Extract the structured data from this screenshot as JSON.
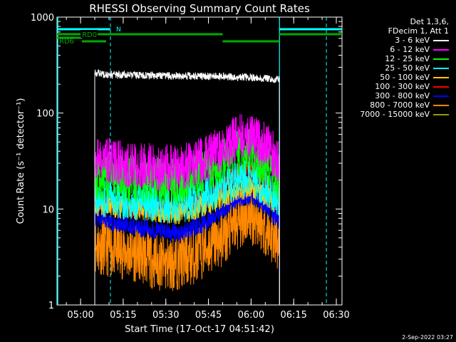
{
  "header": {
    "detectors": "Det 1,3,6,",
    "fdecim": "FDecim 1, Att 1"
  },
  "footer_stamp": "2-Sep-2022 03:27",
  "chart_data": {
    "type": "line",
    "title": "RHESSI Observing Summary Count Rates",
    "xlabel": "Start Time (17-Oct-17 04:51:42)",
    "ylabel": "Count Rate (s⁻¹ detector⁻¹)",
    "yscale": "log",
    "ylim": [
      1,
      1000
    ],
    "xlim": [
      "04:51:42",
      "06:32:00"
    ],
    "x_ticks": [
      "05:00",
      "05:15",
      "05:30",
      "05:45",
      "06:00",
      "06:15",
      "06:30"
    ],
    "y_ticks": [
      {
        "value": 1,
        "label": "1"
      },
      {
        "value": 10,
        "label": "10"
      },
      {
        "value": 100,
        "label": "100"
      },
      {
        "value": 1000,
        "label": "1000"
      }
    ],
    "grid": false,
    "legend_position": "top-right",
    "series": [
      {
        "name": "3 - 6 keV",
        "color": "#ffffff",
        "noise": 0.04,
        "points": [
          [
            "05:05",
            260
          ],
          [
            "05:10",
            250
          ],
          [
            "05:30",
            245
          ],
          [
            "05:50",
            240
          ],
          [
            "06:00",
            235
          ],
          [
            "06:10",
            225
          ]
        ]
      },
      {
        "name": "6 - 12 keV",
        "color": "#ff00ff",
        "noise": 0.25,
        "points": [
          [
            "05:05",
            33
          ],
          [
            "05:20",
            28
          ],
          [
            "05:35",
            26
          ],
          [
            "05:45",
            34
          ],
          [
            "05:55",
            55
          ],
          [
            "06:00",
            55
          ],
          [
            "06:05",
            45
          ],
          [
            "06:10",
            32
          ]
        ]
      },
      {
        "name": "12 - 25 keV",
        "color": "#00ff00",
        "noise": 0.25,
        "points": [
          [
            "05:05",
            22
          ],
          [
            "05:20",
            20
          ],
          [
            "05:35",
            19
          ],
          [
            "05:45",
            26
          ],
          [
            "05:55",
            40
          ],
          [
            "06:00",
            40
          ],
          [
            "06:05",
            30
          ],
          [
            "06:10",
            20
          ]
        ]
      },
      {
        "name": "25 - 50 keV",
        "color": "#00ffff",
        "noise": 0.2,
        "points": [
          [
            "05:05",
            13
          ],
          [
            "05:20",
            12
          ],
          [
            "05:35",
            11
          ],
          [
            "05:45",
            14
          ],
          [
            "05:55",
            20
          ],
          [
            "06:00",
            21
          ],
          [
            "06:05",
            17
          ],
          [
            "06:10",
            13
          ]
        ]
      },
      {
        "name": "50 - 100 keV",
        "color": "#ffcc00",
        "noise": 0.12,
        "points": [
          [
            "05:05",
            11
          ],
          [
            "05:20",
            10
          ],
          [
            "05:35",
            9
          ],
          [
            "05:45",
            11
          ],
          [
            "05:55",
            16
          ],
          [
            "06:00",
            17
          ],
          [
            "06:05",
            14
          ],
          [
            "06:10",
            11
          ]
        ]
      },
      {
        "name": "100 - 300 keV",
        "color": "#ff0000",
        "noise": 0.1,
        "points": [
          [
            "05:05",
            12
          ],
          [
            "05:20",
            10
          ],
          [
            "05:35",
            10
          ],
          [
            "05:45",
            13
          ],
          [
            "05:55",
            24
          ],
          [
            "06:00",
            26
          ],
          [
            "06:05",
            20
          ],
          [
            "06:10",
            14
          ]
        ]
      },
      {
        "name": "300 - 800 keV",
        "color": "#0000ff",
        "noise": 0.1,
        "points": [
          [
            "05:05",
            8
          ],
          [
            "05:20",
            6.5
          ],
          [
            "05:35",
            5.5
          ],
          [
            "05:45",
            7.5
          ],
          [
            "05:55",
            13
          ],
          [
            "06:00",
            14
          ],
          [
            "06:05",
            11
          ],
          [
            "06:10",
            7.5
          ]
        ]
      },
      {
        "name": "800 - 7000 keV",
        "color": "#ff8800",
        "noise": 0.3,
        "points": [
          [
            "05:05",
            4.2
          ],
          [
            "05:20",
            3.4
          ],
          [
            "05:30",
            2.6
          ],
          [
            "05:40",
            3.2
          ],
          [
            "05:50",
            5
          ],
          [
            "05:58",
            8.5
          ],
          [
            "06:02",
            8
          ],
          [
            "06:10",
            4.2
          ]
        ]
      },
      {
        "name": "7000 - 15000 keV",
        "color": "#999900",
        "noise": 0.0,
        "points": []
      }
    ],
    "annotations": [
      {
        "label": "N",
        "color": "#00ffff"
      },
      {
        "label": "RD0",
        "color": "#00aa00"
      },
      {
        "label": "RD6",
        "color": "#00aa00"
      }
    ]
  }
}
